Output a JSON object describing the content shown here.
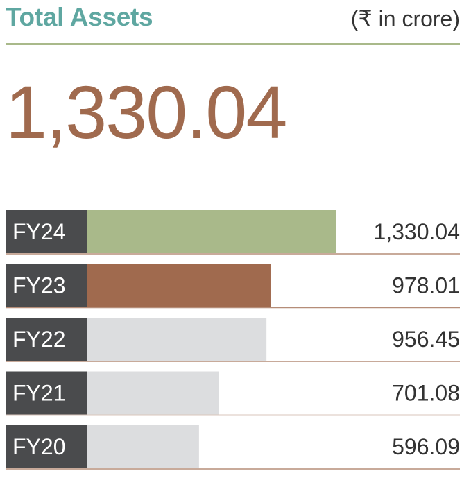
{
  "header": {
    "title": "Total Assets",
    "unit": "(₹ in crore)"
  },
  "highlight_value": "1,330.04",
  "colors": {
    "title": "#5fa7a1",
    "accent_line": "#a9b98a",
    "big_value": "#a06a4e",
    "label_box": "#4a4b4d",
    "bar_current": "#a9b98a",
    "bar_previous": "#a06a4e",
    "bar_other": "#dcdddf"
  },
  "chart_data": {
    "type": "bar",
    "orientation": "horizontal",
    "categories": [
      "FY24",
      "FY23",
      "FY22",
      "FY21",
      "FY20"
    ],
    "values": [
      1330.04,
      978.01,
      956.45,
      701.08,
      596.09
    ],
    "value_labels": [
      "1,330.04",
      "978.01",
      "956.45",
      "701.08",
      "596.09"
    ],
    "bar_colors": [
      "#a9b98a",
      "#a06a4e",
      "#dcdddf",
      "#dcdddf",
      "#dcdddf"
    ],
    "title": "Total Assets",
    "xlabel": "",
    "ylabel": "",
    "grid": false
  }
}
